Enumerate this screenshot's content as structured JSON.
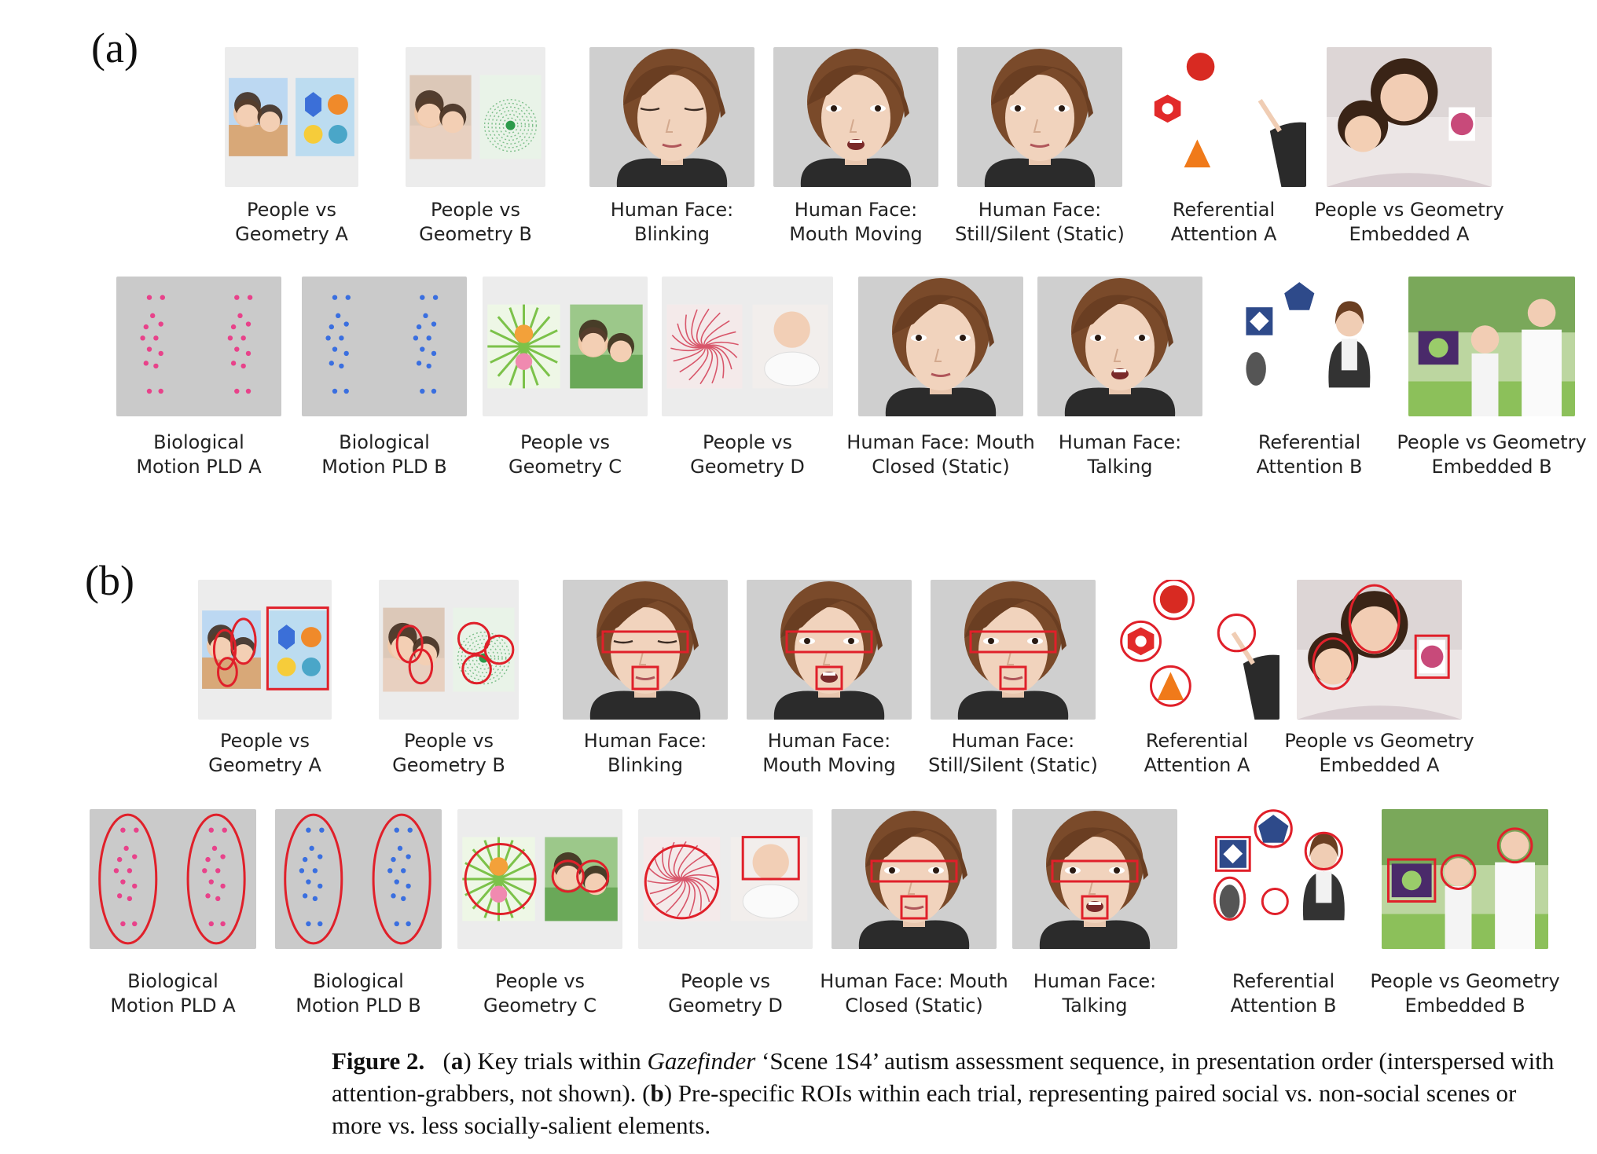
{
  "panels": [
    {
      "letter": "(a)",
      "rows": [
        [
          {
            "kind": "pvg-a",
            "l1": "People vs",
            "l2": "Geometry A"
          },
          {
            "kind": "pvg-b",
            "l1": "People vs",
            "l2": "Geometry B"
          },
          {
            "kind": "face-blink",
            "l1": "Human Face:",
            "l2": "Blinking"
          },
          {
            "kind": "face-talk",
            "l1": "Human Face:",
            "l2": "Mouth Moving"
          },
          {
            "kind": "face",
            "l1": "Human Face:",
            "l2": "Still/Silent (Static)"
          },
          {
            "kind": "ref-a",
            "l1": "Referential",
            "l2": "Attention A"
          },
          {
            "kind": "emb-a",
            "l1": "People vs Geometry",
            "l2": "Embedded A"
          }
        ],
        [
          {
            "kind": "pld-a",
            "l1": "Biological",
            "l2": "Motion PLD A"
          },
          {
            "kind": "pld-b",
            "l1": "Biological",
            "l2": "Motion PLD B"
          },
          {
            "kind": "pvg-c",
            "l1": "People vs",
            "l2": "Geometry C"
          },
          {
            "kind": "pvg-d",
            "l1": "People vs",
            "l2": "Geometry D"
          },
          {
            "kind": "face",
            "l1": "Human Face: Mouth",
            "l2": "Closed (Static)"
          },
          {
            "kind": "face-talk",
            "l1": "Human Face:",
            "l2": "Talking"
          },
          {
            "kind": "ref-b",
            "l1": "Referential",
            "l2": "Attention B"
          },
          {
            "kind": "emb-b",
            "l1": "People vs Geometry",
            "l2": "Embedded B"
          }
        ]
      ]
    },
    {
      "letter": "(b)",
      "rows": [
        [
          {
            "kind": "pvg-a",
            "l1": "People vs",
            "l2": "Geometry A"
          },
          {
            "kind": "pvg-b",
            "l1": "People vs",
            "l2": "Geometry B"
          },
          {
            "kind": "face-blink",
            "l1": "Human Face:",
            "l2": "Blinking"
          },
          {
            "kind": "face-talk",
            "l1": "Human Face:",
            "l2": "Mouth Moving"
          },
          {
            "kind": "face",
            "l1": "Human Face:",
            "l2": "Still/Silent (Static)"
          },
          {
            "kind": "ref-a",
            "l1": "Referential",
            "l2": "Attention A"
          },
          {
            "kind": "emb-a",
            "l1": "People vs Geometry",
            "l2": "Embedded A"
          }
        ],
        [
          {
            "kind": "pld-a",
            "l1": "Biological",
            "l2": "Motion PLD A"
          },
          {
            "kind": "pld-b",
            "l1": "Biological",
            "l2": "Motion PLD B"
          },
          {
            "kind": "pvg-c",
            "l1": "People vs",
            "l2": "Geometry C"
          },
          {
            "kind": "pvg-d",
            "l1": "People vs",
            "l2": "Geometry D"
          },
          {
            "kind": "face",
            "l1": "Human Face: Mouth",
            "l2": "Closed (Static)"
          },
          {
            "kind": "face-talk",
            "l1": "Human Face:",
            "l2": "Talking"
          },
          {
            "kind": "ref-b",
            "l1": "Referential",
            "l2": "Attention B"
          },
          {
            "kind": "emb-b",
            "l1": "People vs Geometry",
            "l2": "Embedded B"
          }
        ]
      ]
    }
  ],
  "caption": {
    "label": "Figure 2.",
    "a_letter": "a",
    "text1": " Key trials within ",
    "italic": "Gazefinder",
    "text2": " ‘Scene 1S4’ autism assessment sequence, in presentation order (interspersed with attention-grabbers, not shown). (",
    "b_letter": "b",
    "text3": ") Pre-specific ROIs within each trial, representing paired social vs. non-social scenes or more vs. less socially-salient elements."
  },
  "colors": {
    "roi": "#e0202a",
    "bg_gray": "#c9c9c9",
    "pld_pink": "#e8428a",
    "pld_blue": "#3a6fe0"
  }
}
